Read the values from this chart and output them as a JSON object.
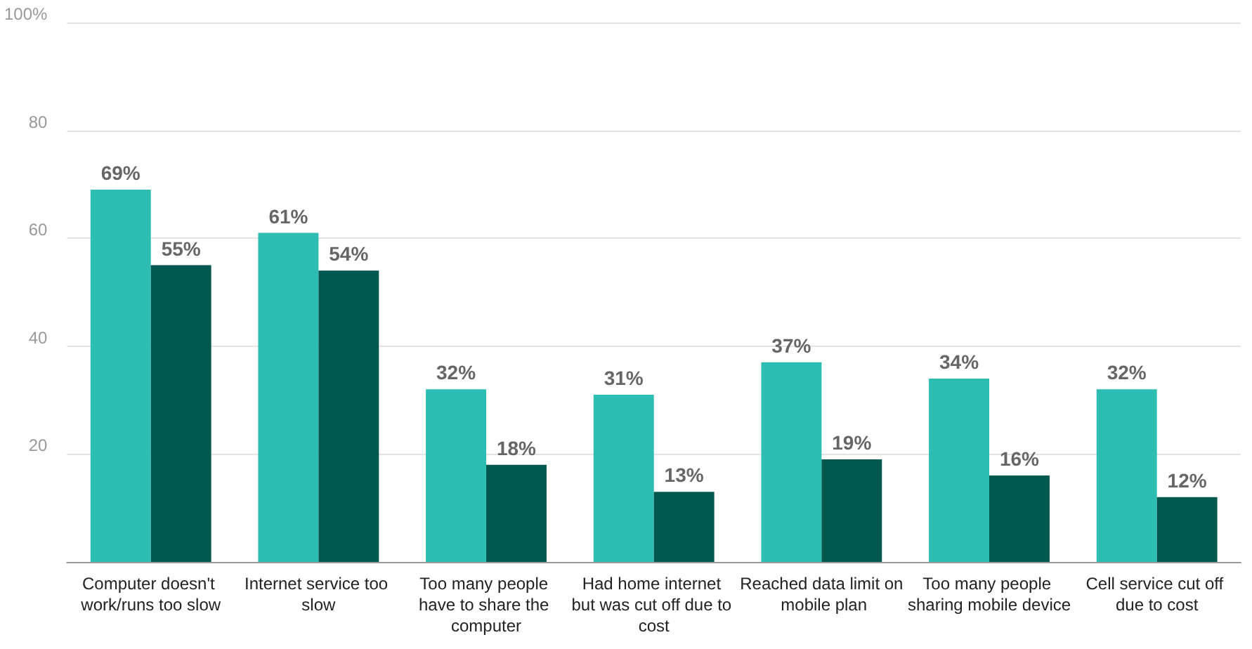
{
  "chart_data": {
    "type": "bar",
    "categories": [
      "Computer doesn't work/runs too slow",
      "Internet service too slow",
      "Too many people have to share the computer",
      "Had home internet but was cut off due to cost",
      "Reached data limit on mobile plan",
      "Too many people sharing mobile device",
      "Cell service cut off due to cost"
    ],
    "series": [
      {
        "color": "#2ebdb2",
        "values": [
          69,
          61,
          32,
          31,
          37,
          34,
          32
        ],
        "value_labels": [
          "69%",
          "61%",
          "32%",
          "31%",
          "37%",
          "34%",
          "32%"
        ]
      },
      {
        "color": "#00584f",
        "values": [
          55,
          54,
          18,
          13,
          19,
          16,
          12
        ],
        "value_labels": [
          "55%",
          "54%",
          "18%",
          "13%",
          "19%",
          "16%",
          "12%"
        ]
      }
    ],
    "ylim": [
      0,
      100
    ],
    "yticks": [
      {
        "value": 0,
        "label": null
      },
      20,
      40,
      60,
      80,
      {
        "value": 100,
        "label": "100%"
      }
    ],
    "grid": "y"
  }
}
